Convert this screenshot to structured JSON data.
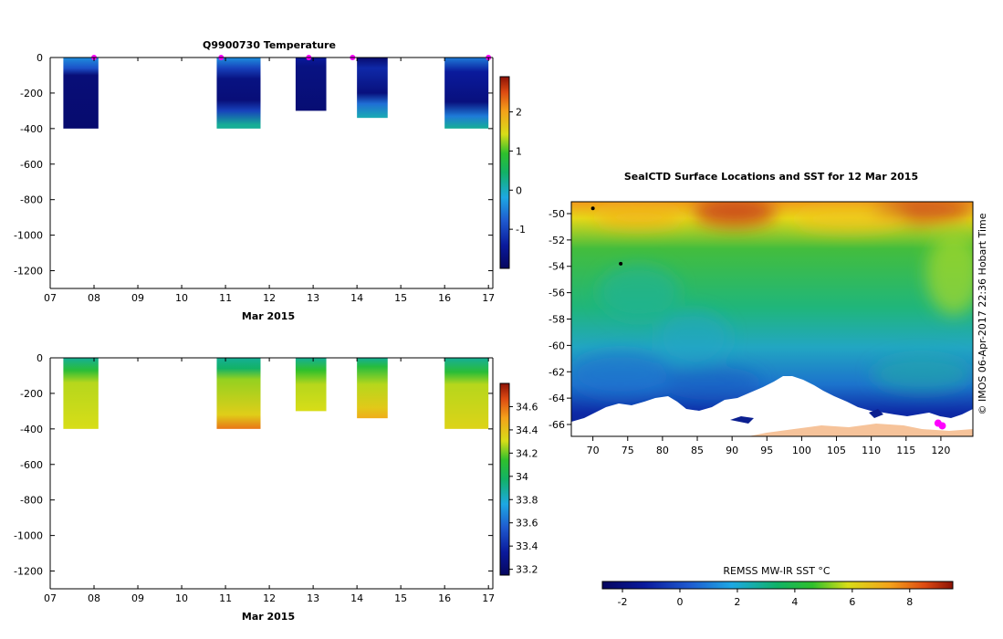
{
  "chart_data": [
    {
      "type": "heatmap",
      "title": "Q9900730  Temperature",
      "xlabel": "Mar 2015",
      "ylabel": "",
      "x_ticks": [
        "07",
        "08",
        "09",
        "10",
        "11",
        "12",
        "13",
        "14",
        "15",
        "16",
        "17"
      ],
      "xlim": [
        7,
        17.1
      ],
      "ylim": [
        -1300,
        0
      ],
      "y_ticks": [
        0,
        -200,
        -400,
        -600,
        -800,
        -1000,
        -1200
      ],
      "colorbar": {
        "min": -2,
        "max": 2.9,
        "ticks": [
          -1,
          0,
          1,
          2
        ]
      },
      "profiles": [
        {
          "start": 7.3,
          "end": 8.1,
          "depth_max": 400,
          "stops": [
            [
              0,
              0.33
            ],
            [
              60,
              0.23
            ],
            [
              100,
              0.05
            ],
            [
              400,
              0.03
            ]
          ]
        },
        {
          "start": 10.8,
          "end": 11.8,
          "depth_max": 400,
          "stops": [
            [
              0,
              0.33
            ],
            [
              60,
              0.2
            ],
            [
              120,
              0.07
            ],
            [
              240,
              0.05
            ],
            [
              300,
              0.2
            ],
            [
              380,
              0.45
            ],
            [
              400,
              0.45
            ]
          ]
        },
        {
          "start": 12.6,
          "end": 13.3,
          "depth_max": 300,
          "stops": [
            [
              0,
              0.12
            ],
            [
              50,
              0.07
            ],
            [
              300,
              0.04
            ]
          ]
        },
        {
          "start": 14.0,
          "end": 14.7,
          "depth_max": 340,
          "stops": [
            [
              0,
              0.03
            ],
            [
              60,
              0.15
            ],
            [
              200,
              0.06
            ],
            [
              260,
              0.28
            ],
            [
              340,
              0.42
            ]
          ]
        },
        {
          "start": 16.0,
          "end": 17.0,
          "depth_max": 400,
          "stops": [
            [
              0,
              0.3
            ],
            [
              80,
              0.12
            ],
            [
              250,
              0.06
            ],
            [
              330,
              0.3
            ],
            [
              400,
              0.45
            ]
          ]
        }
      ],
      "surface_markers_x": [
        8.0,
        10.9,
        12.9,
        13.9,
        17.0
      ]
    },
    {
      "type": "heatmap",
      "title": "",
      "xlabel": "Mar 2015",
      "ylabel": "",
      "x_ticks": [
        "07",
        "08",
        "09",
        "10",
        "11",
        "12",
        "13",
        "14",
        "15",
        "16",
        "17"
      ],
      "xlim": [
        7,
        17.1
      ],
      "ylim": [
        -1300,
        0
      ],
      "y_ticks": [
        0,
        -200,
        -400,
        -600,
        -800,
        -1000,
        -1200
      ],
      "colorbar": {
        "min": 33.15,
        "max": 34.8,
        "ticks": [
          33.2,
          33.4,
          33.6,
          33.8,
          34,
          34.2,
          34.4,
          34.6
        ]
      },
      "profiles": [
        {
          "start": 7.3,
          "end": 8.1,
          "depth_max": 400,
          "stops": [
            [
              0,
              0.45
            ],
            [
              70,
              0.58
            ],
            [
              140,
              0.68
            ],
            [
              400,
              0.7
            ]
          ]
        },
        {
          "start": 10.8,
          "end": 11.8,
          "depth_max": 400,
          "stops": [
            [
              0,
              0.45
            ],
            [
              60,
              0.5
            ],
            [
              120,
              0.66
            ],
            [
              320,
              0.73
            ],
            [
              400,
              0.87
            ]
          ]
        },
        {
          "start": 12.6,
          "end": 13.3,
          "depth_max": 300,
          "stops": [
            [
              0,
              0.45
            ],
            [
              70,
              0.6
            ],
            [
              150,
              0.68
            ],
            [
              300,
              0.7
            ]
          ]
        },
        {
          "start": 14.0,
          "end": 14.7,
          "depth_max": 340,
          "stops": [
            [
              0,
              0.45
            ],
            [
              50,
              0.57
            ],
            [
              150,
              0.68
            ],
            [
              280,
              0.74
            ],
            [
              340,
              0.8
            ]
          ]
        },
        {
          "start": 16.0,
          "end": 17.0,
          "depth_max": 400,
          "stops": [
            [
              0,
              0.45
            ],
            [
              80,
              0.58
            ],
            [
              150,
              0.68
            ],
            [
              400,
              0.72
            ]
          ]
        }
      ]
    },
    {
      "type": "heatmap",
      "title": "SealCTD Surface Locations and SST for 12 Mar 2015",
      "xlabel": "",
      "ylabel": "",
      "x_ticks": [
        70,
        75,
        80,
        85,
        90,
        95,
        100,
        105,
        110,
        115,
        120
      ],
      "y_ticks": [
        -50,
        -52,
        -54,
        -56,
        -58,
        -60,
        -62,
        -64,
        -66
      ],
      "xlim": [
        66.9,
        124.6
      ],
      "ylim": [
        -66.9,
        -49.1
      ],
      "colorbar": {
        "label": "REMSS MW-IR SST °C",
        "min": -2.7,
        "max": 9.5,
        "ticks": [
          -2,
          0,
          2,
          4,
          6,
          8
        ]
      },
      "credit": "© IMOS 06-Apr-2017 22:36 Hobart Time",
      "seal_locations": [
        [
          119.6,
          -65.9
        ],
        [
          120.2,
          -66.1
        ],
        [
          70.0,
          -49.6
        ],
        [
          74.0,
          -53.8
        ]
      ]
    }
  ]
}
